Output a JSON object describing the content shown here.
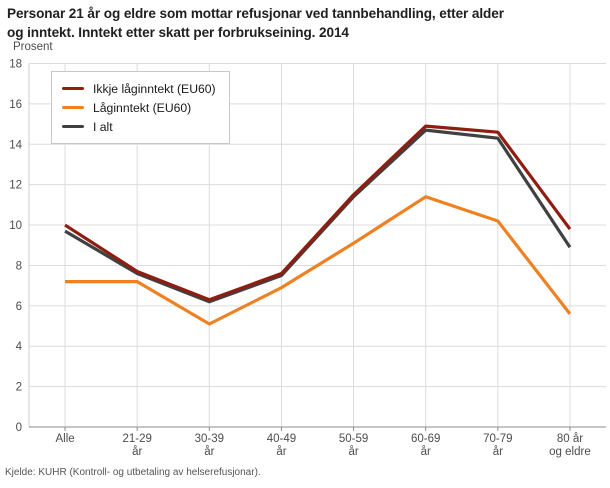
{
  "header": {
    "title_lines": [
      "Personar 21 år og eldre som mottar refusjonar ved tannbehandling, etter alder",
      "og inntekt. Inntekt etter skatt per forbrukseining. 2014"
    ],
    "unit_label": "Prosent"
  },
  "footer": {
    "source": "Kjelde: KUHR (Kontroll- og utbetaling av helserefusjonar)."
  },
  "chart_data": {
    "type": "line",
    "title": "Personar 21 år og eldre som mottar refusjonar ved tannbehandling, etter alder og inntekt. Inntekt etter skatt per forbrukseining. 2014",
    "ylabel": "Prosent",
    "categories": [
      "Alle",
      "21-29 år",
      "30-39 år",
      "40-49 år",
      "50-59 år",
      "60-69 år",
      "70-79 år",
      "80 år og eldre"
    ],
    "tick_label_lines": [
      [
        "Alle"
      ],
      [
        "21-29",
        "år"
      ],
      [
        "30-39",
        "år"
      ],
      [
        "40-49",
        "år"
      ],
      [
        "50-59",
        "år"
      ],
      [
        "60-69",
        "år"
      ],
      [
        "70-79",
        "år"
      ],
      [
        "80 år",
        "og eldre"
      ]
    ],
    "series": [
      {
        "name": "Ikkje låginntekt (EU60)",
        "color": "#8f1d10",
        "values": [
          10.0,
          7.7,
          6.3,
          7.6,
          11.5,
          14.9,
          14.6,
          9.8
        ]
      },
      {
        "name": "Låginntekt (EU60)",
        "color": "#ef8123",
        "values": [
          7.2,
          7.2,
          5.1,
          6.9,
          9.1,
          11.4,
          10.2,
          5.6
        ]
      },
      {
        "name": "I alt",
        "color": "#404040",
        "values": [
          9.7,
          7.6,
          6.2,
          7.5,
          11.4,
          14.7,
          14.3,
          8.9
        ]
      }
    ],
    "ylim": [
      0,
      18
    ],
    "ytick_step": 2,
    "grid": true,
    "legend_position": "top-left",
    "colors": {
      "gridline": "#dcdcdc",
      "axis_left": "#cfcfcf",
      "axis_bottom": "#8c8c8c",
      "tick_label": "#4d4d4d"
    }
  }
}
